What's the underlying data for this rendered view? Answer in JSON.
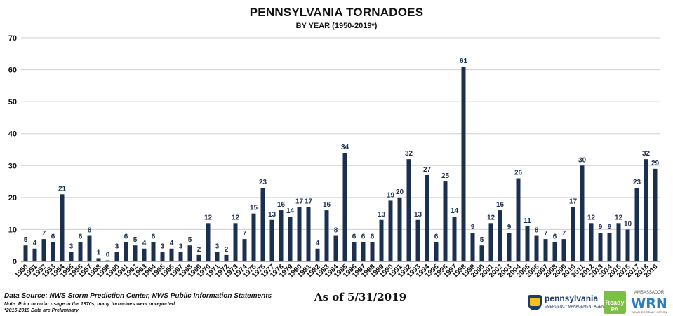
{
  "chart_data": {
    "type": "bar",
    "title": "PENNSYLVANIA TORNADOES",
    "subtitle": "BY YEAR (1950-2019*)",
    "xlabel": "",
    "ylabel": "",
    "ylim": [
      0,
      70
    ],
    "yticks": [
      0,
      10,
      20,
      30,
      40,
      50,
      60,
      70
    ],
    "grid": true,
    "legend": "none",
    "bar_color": "#1b2f4e",
    "categories": [
      "1950",
      "1951",
      "1952",
      "1953",
      "1954",
      "1955",
      "1956",
      "1957",
      "1958",
      "1959",
      "1960",
      "1961",
      "1962",
      "1963",
      "1964",
      "1965",
      "1966",
      "1967",
      "1968",
      "1969",
      "1970",
      "1971",
      "1972",
      "1973",
      "1974",
      "1975",
      "1976",
      "1977",
      "1978",
      "1979",
      "1980",
      "1981",
      "1982",
      "1983",
      "1984",
      "1985",
      "1986",
      "1987",
      "1988",
      "1989",
      "1990",
      "1991",
      "1992",
      "1993",
      "1994",
      "1995",
      "1996",
      "1997",
      "1998",
      "1999",
      "2000",
      "2001",
      "2002",
      "2003",
      "2004",
      "2005",
      "2006",
      "2007",
      "2008",
      "2009",
      "2010",
      "2011",
      "2012",
      "2013",
      "2014",
      "2015",
      "2016",
      "2017",
      "2018",
      "2019"
    ],
    "values": [
      5,
      4,
      7,
      6,
      21,
      3,
      6,
      8,
      1,
      0,
      3,
      6,
      5,
      4,
      6,
      3,
      4,
      3,
      5,
      2,
      12,
      3,
      2,
      12,
      7,
      15,
      23,
      13,
      16,
      14,
      17,
      17,
      4,
      16,
      8,
      34,
      6,
      6,
      6,
      13,
      19,
      20,
      32,
      13,
      27,
      6,
      25,
      14,
      61,
      9,
      5,
      12,
      16,
      9,
      26,
      11,
      8,
      7,
      6,
      7,
      17,
      30,
      12,
      9,
      9,
      12,
      10,
      23,
      32,
      29
    ]
  },
  "footer": {
    "source": "Data Source: NWS Storm Prediction Center, NWS Public Information Statements",
    "note1": "Note: Prior to radar usage in the 1970s, many tornadoes went unreported",
    "note2": "*2015-2019 Data are Preliminary",
    "as_of": "As of 5/31/2019"
  },
  "logos": {
    "pa_word": "pennsylvania",
    "pa_sub": "EMERGENCY MANAGEMENT AGENCY",
    "ready_word": "Ready",
    "ready_pa": "PA",
    "wrn_top": "AMBASSADOR",
    "wrn_word": "WRN",
    "wrn_sub": "WEATHER-READY NATION"
  }
}
